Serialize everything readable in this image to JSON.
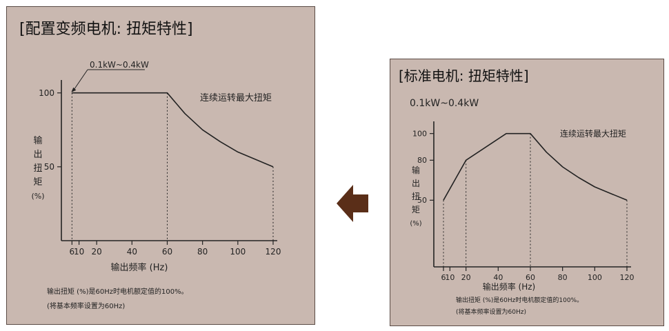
{
  "left_panel": {
    "title": "[配置变频电机: 扭矩特性]",
    "range_label": "0.1kW~0.4kW",
    "curve_label": "连续运转最大扭矩",
    "ylabel_chars": [
      "输",
      "出",
      "扭",
      "矩",
      "(%)"
    ],
    "xlabel": "输出频率 (Hz)",
    "note1": "输出扭矩 (%)是60Hz时电机额定值的100%。",
    "note2": "(将基本频率设置为60Hz)"
  },
  "right_panel": {
    "title": "[标准电机: 扭矩特性]",
    "range_label": "0.1kW~0.4kW",
    "curve_label": "连续运转最大扭矩",
    "ylabel_chars": [
      "输",
      "出",
      "扭",
      "矩",
      "(%)"
    ],
    "xlabel": "输出频率 (Hz)",
    "note1": "输出扭矩 (%)是60Hz时电机额定值的100%。",
    "note2": "(将基本频率设置为60Hz)"
  },
  "arrow": {
    "icon": "left-arrow-icon",
    "color": "#5a2e18"
  },
  "chart_data": [
    {
      "type": "line",
      "title": "[配置变频电机: 扭矩特性]",
      "xlabel": "输出频率 (Hz)",
      "ylabel": "输出扭矩 (%)",
      "xlim": [
        0,
        120
      ],
      "ylim": [
        0,
        105
      ],
      "xticks": [
        6,
        10,
        20,
        40,
        60,
        80,
        100,
        120
      ],
      "yticks": [
        50,
        100
      ],
      "series": [
        {
          "name": "连续运转最大扭矩",
          "x": [
            6,
            60,
            70,
            80,
            90,
            100,
            110,
            120
          ],
          "y": [
            100,
            100,
            86,
            75,
            67,
            60,
            55,
            50
          ]
        }
      ],
      "guides": [
        6,
        60,
        120
      ],
      "grid": false,
      "color": "#222222"
    },
    {
      "type": "line",
      "title": "[标准电机: 扭矩特性]",
      "xlabel": "输出频率 (Hz)",
      "ylabel": "输出扭矩 (%)",
      "xlim": [
        0,
        120
      ],
      "ylim": [
        0,
        105
      ],
      "xticks": [
        6,
        10,
        20,
        40,
        60,
        80,
        100,
        120
      ],
      "yticks": [
        50,
        80,
        100
      ],
      "series": [
        {
          "name": "连续运转最大扭矩",
          "x": [
            6,
            20,
            45,
            60,
            70,
            80,
            90,
            100,
            110,
            120
          ],
          "y": [
            50,
            80,
            100,
            100,
            86,
            75,
            67,
            60,
            55,
            50
          ]
        }
      ],
      "guides": [
        6,
        20,
        60,
        120
      ],
      "grid": false,
      "color": "#222222"
    }
  ]
}
